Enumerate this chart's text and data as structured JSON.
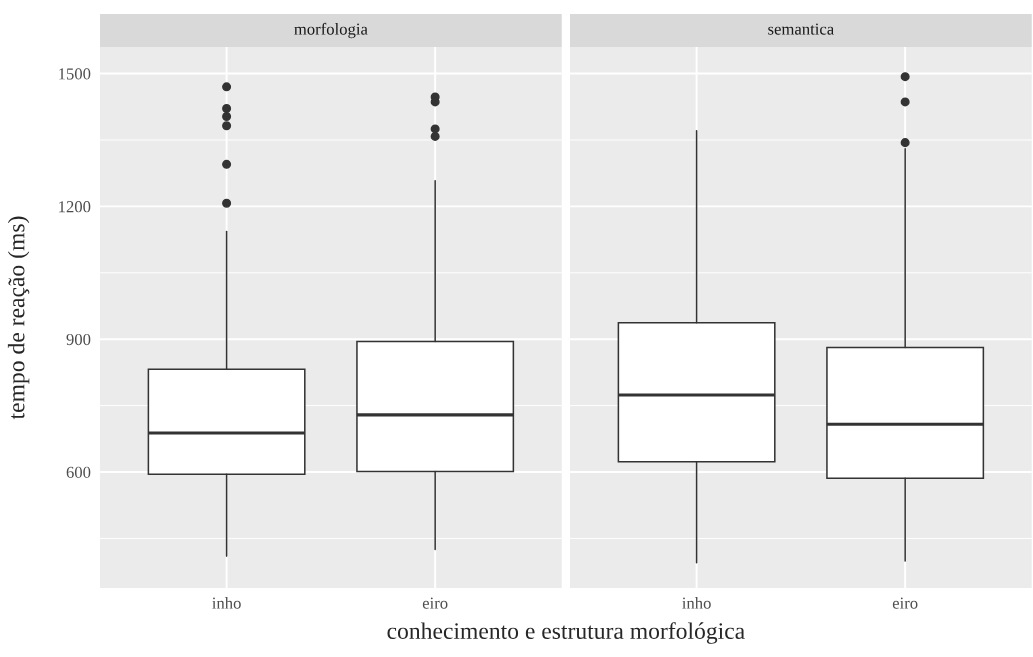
{
  "chart_data": [
    {
      "type": "box",
      "title": "morfologia",
      "xlabel": "conhecimento e estrutura morfológica",
      "ylabel": "tempo de reação (ms)",
      "categories": [
        "inho",
        "eiro"
      ],
      "boxes": [
        {
          "low": 410,
          "q1": 595,
          "median": 688,
          "q3": 832,
          "high": 1143,
          "outliers": [
            1470,
            1421,
            1403,
            1382,
            1295,
            1207
          ]
        },
        {
          "low": 425,
          "q1": 601,
          "median": 729,
          "q3": 895,
          "high": 1258,
          "outliers": [
            1447,
            1436,
            1375,
            1358
          ]
        }
      ],
      "ylim": [
        338,
        1560
      ],
      "yticks": [
        {
          "value": 450,
          "label": null
        },
        600,
        {
          "value": 750,
          "label": null
        },
        900,
        {
          "value": 1050,
          "label": null
        },
        1200,
        {
          "value": 1350,
          "label": null
        },
        1500
      ],
      "grid": true
    },
    {
      "type": "box",
      "title": "semantica",
      "categories": [
        "inho",
        "eiro"
      ],
      "boxes": [
        {
          "low": 395,
          "q1": 623,
          "median": 774,
          "q3": 937,
          "high": 1371
        },
        {
          "low": 399,
          "q1": 586,
          "median": 708,
          "q3": 881,
          "high": 1330,
          "outliers": [
            1493,
            1436,
            1344
          ]
        }
      ],
      "ylim": [
        338,
        1560
      ],
      "yticks": [
        {
          "value": 450,
          "label": null
        },
        600,
        {
          "value": 750,
          "label": null
        },
        900,
        {
          "value": 1050,
          "label": null
        },
        1200,
        {
          "value": 1350,
          "label": null
        },
        1500
      ],
      "grid": true,
      "tick_labels": "x"
    }
  ]
}
